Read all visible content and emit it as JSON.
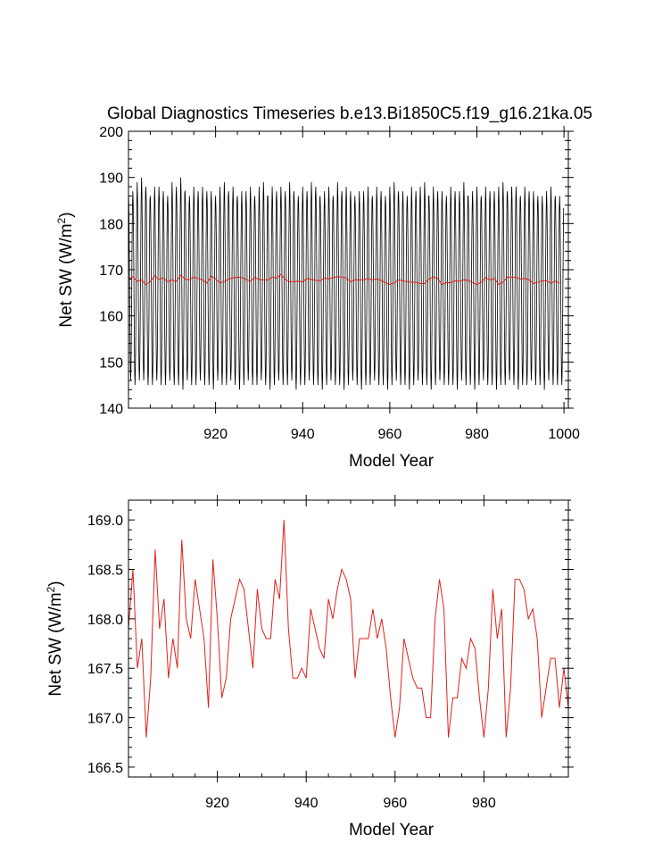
{
  "title": "Global Diagnostics Timeseries b.e13.Bi1850C5.f19_g16.21ka.05",
  "chart_data": [
    {
      "type": "line",
      "name": "monthly-timeseries",
      "xlabel": "Model Year",
      "ylabel_main": "Net SW (W/m",
      "ylabel_sup": "2",
      "ylabel_close": ")",
      "xlim": [
        900,
        1001
      ],
      "ylim": [
        140,
        200
      ],
      "xticks": [
        920,
        940,
        960,
        980,
        1000
      ],
      "yticks": [
        140,
        150,
        160,
        170,
        180,
        190,
        200
      ],
      "series": [
        {
          "name": "monthly",
          "color": "#000000",
          "start_year": 900,
          "months_per_year": 12,
          "seasonal_min": 145,
          "seasonal_max": 188,
          "peak_maxima": [
            187,
            187,
            189,
            190,
            188,
            186,
            188,
            188,
            187,
            186,
            189,
            188,
            190,
            187,
            186,
            188,
            187,
            188,
            187,
            187,
            186,
            188,
            189,
            187,
            188,
            186,
            187,
            187,
            188,
            186,
            188,
            189,
            186,
            188,
            187,
            188,
            187,
            189,
            187,
            186,
            188,
            187,
            189,
            188,
            186,
            187,
            188,
            186,
            189,
            187,
            188,
            187,
            186,
            187,
            187,
            188,
            186,
            188,
            187,
            186,
            188,
            189,
            187,
            187,
            186,
            188,
            187,
            188,
            189,
            186,
            188,
            187,
            187,
            186,
            188,
            187,
            187,
            189,
            186,
            187,
            188,
            186,
            188,
            187,
            187,
            188,
            189,
            187,
            188,
            188,
            186,
            188,
            187,
            187,
            186,
            186,
            187,
            188,
            186,
            186
          ],
          "trough_minima": [
            146,
            145,
            146,
            146,
            145,
            145,
            146,
            145,
            145,
            146,
            145,
            145,
            144,
            146,
            145,
            145,
            146,
            145,
            145,
            144,
            146,
            145,
            145,
            146,
            145,
            144,
            145,
            146,
            145,
            145,
            146,
            145,
            144,
            145,
            146,
            145,
            145,
            146,
            144,
            145,
            145,
            146,
            145,
            145,
            144,
            145,
            146,
            145,
            145,
            144,
            145,
            146,
            145,
            144,
            145,
            145,
            146,
            145,
            145,
            144,
            145,
            146,
            145,
            145,
            144,
            145,
            146,
            145,
            145,
            144,
            145,
            146,
            145,
            145,
            145,
            144,
            146,
            145,
            145,
            144,
            145,
            146,
            145,
            145,
            144,
            145,
            145,
            146,
            145,
            144,
            145,
            145,
            146,
            145,
            145,
            144,
            146,
            145,
            145,
            145
          ]
        },
        {
          "name": "annual-mean",
          "color": "#e0201a",
          "start_year": 900,
          "values": [
            167.9,
            168.5,
            167.5,
            167.8,
            166.8,
            167.4,
            168.7,
            167.9,
            168.2,
            167.4,
            167.8,
            167.5,
            168.8,
            168.0,
            167.8,
            168.4,
            168.1,
            167.8,
            167.1,
            168.6,
            168.0,
            167.2,
            167.4,
            168.0,
            168.2,
            168.4,
            168.3,
            167.9,
            167.5,
            168.3,
            167.9,
            167.8,
            167.8,
            168.4,
            168.2,
            169.0,
            167.9,
            167.4,
            167.4,
            167.5,
            167.4,
            168.1,
            167.9,
            167.7,
            167.6,
            168.2,
            168.0,
            168.3,
            168.5,
            168.4,
            168.2,
            167.4,
            167.8,
            167.8,
            167.8,
            168.1,
            167.8,
            168.0,
            167.7,
            167.2,
            166.8,
            167.1,
            167.8,
            167.6,
            167.4,
            167.3,
            167.3,
            167.0,
            167.0,
            168.0,
            168.4,
            168.1,
            166.8,
            167.2,
            167.2,
            167.6,
            167.5,
            167.8,
            167.7,
            167.2,
            166.8,
            167.3,
            168.3,
            167.8,
            168.1,
            166.8,
            167.3,
            168.4,
            168.4,
            168.3,
            168.0,
            168.1,
            167.8,
            167.0,
            167.3,
            167.6,
            167.6,
            167.1,
            167.5,
            167.1
          ]
        }
      ]
    },
    {
      "type": "line",
      "name": "annual-mean-timeseries",
      "xlabel": "Model Year",
      "ylabel_main": "Net SW (W/m",
      "ylabel_sup": "2",
      "ylabel_close": ")",
      "xlim": [
        900,
        999
      ],
      "ylim": [
        166.4,
        169.2
      ],
      "xticks": [
        920,
        940,
        960,
        980
      ],
      "yticks": [
        166.5,
        167.0,
        167.5,
        168.0,
        168.5,
        169.0
      ],
      "ytick_labels": [
        "166.5",
        "167.0",
        "167.5",
        "168.0",
        "168.5",
        "169.0"
      ],
      "series": [
        {
          "name": "annual-mean",
          "color": "#e0201a",
          "start_year": 900,
          "values": [
            167.9,
            168.5,
            167.5,
            167.8,
            166.8,
            167.4,
            168.7,
            167.9,
            168.2,
            167.4,
            167.8,
            167.5,
            168.8,
            168.0,
            167.8,
            168.4,
            168.1,
            167.8,
            167.1,
            168.6,
            168.0,
            167.2,
            167.4,
            168.0,
            168.2,
            168.4,
            168.3,
            167.9,
            167.5,
            168.3,
            167.9,
            167.8,
            167.8,
            168.4,
            168.2,
            169.0,
            167.9,
            167.4,
            167.4,
            167.5,
            167.4,
            168.1,
            167.9,
            167.7,
            167.6,
            168.2,
            168.0,
            168.3,
            168.5,
            168.4,
            168.2,
            167.4,
            167.8,
            167.8,
            167.8,
            168.1,
            167.8,
            168.0,
            167.7,
            167.2,
            166.8,
            167.1,
            167.8,
            167.6,
            167.4,
            167.3,
            167.3,
            167.0,
            167.0,
            168.0,
            168.4,
            168.1,
            166.8,
            167.2,
            167.2,
            167.6,
            167.5,
            167.8,
            167.7,
            167.2,
            166.8,
            167.3,
            168.3,
            167.8,
            168.1,
            166.8,
            167.3,
            168.4,
            168.4,
            168.3,
            168.0,
            168.1,
            167.8,
            167.0,
            167.3,
            167.6,
            167.6,
            167.1,
            167.5,
            167.1
          ]
        }
      ]
    }
  ]
}
